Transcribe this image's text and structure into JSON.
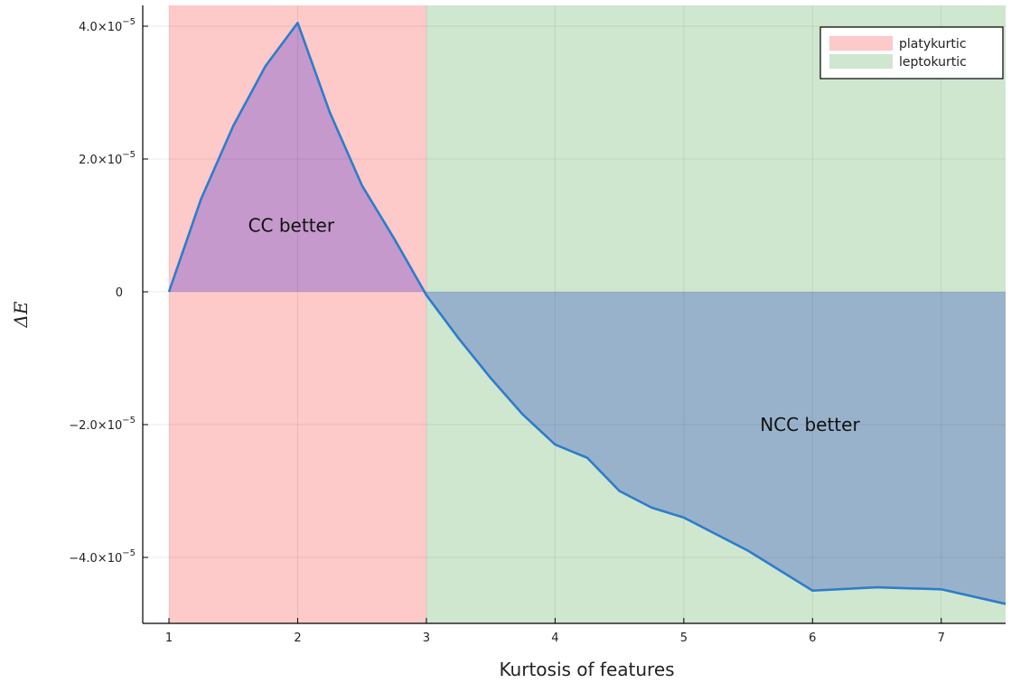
{
  "chart_data": {
    "type": "area",
    "title": "",
    "xlabel": "Kurtosis of features",
    "ylabel": "ΔE",
    "xlim": [
      1,
      7.5
    ],
    "ylim": [
      -5e-05,
      4.3e-05
    ],
    "grid": true,
    "legend_placement": "top-right",
    "x_ticks": [
      {
        "value": 1,
        "label": "1"
      },
      {
        "value": 2,
        "label": "2"
      },
      {
        "value": 3,
        "label": "3"
      },
      {
        "value": 4,
        "label": "4"
      },
      {
        "value": 5,
        "label": "5"
      },
      {
        "value": 6,
        "label": "6"
      },
      {
        "value": 7,
        "label": "7"
      }
    ],
    "y_ticks": [
      {
        "value": 4e-05,
        "mantissa": "4.0×10",
        "exponent": "−5"
      },
      {
        "value": 2e-05,
        "mantissa": "2.0×10",
        "exponent": "−5"
      },
      {
        "value": 0,
        "mantissa": "0",
        "exponent": ""
      },
      {
        "value": -2e-05,
        "mantissa": "−2.0×10",
        "exponent": "−5"
      },
      {
        "value": -4e-05,
        "mantissa": "−4.0×10",
        "exponent": "−5"
      }
    ],
    "regions": [
      {
        "name": "platykurtic",
        "x_start": 1,
        "x_end": 3,
        "color": "#fdc9c9"
      },
      {
        "name": "leptokurtic",
        "x_start": 3,
        "x_end": 7.5,
        "color": "#cfe6cf"
      }
    ],
    "series": [
      {
        "x": [
          1,
          1.25,
          1.5,
          1.75,
          2,
          2.25,
          2.5,
          2.75,
          3,
          3.25,
          3.5,
          3.75,
          4,
          4.25,
          4.5,
          4.75,
          5,
          5.5,
          6,
          6.5,
          7,
          7.5
        ],
        "y": [
          0,
          1.4e-05,
          2.5e-05,
          3.4e-05,
          4.05e-05,
          2.7e-05,
          1.6e-05,
          8e-06,
          -5e-07,
          -7e-06,
          -1.3e-05,
          -1.85e-05,
          -2.3e-05,
          -2.5e-05,
          -3e-05,
          -3.25e-05,
          -3.4e-05,
          -3.9e-05,
          -4.5e-05,
          -4.45e-05,
          -4.48e-05,
          -4.7e-05
        ],
        "color": "#2d7dc9"
      }
    ],
    "fill_colors": {
      "positive": "#c599cc",
      "negative": "#99b2cb"
    },
    "annotations": [
      {
        "text": "CC better",
        "x": 1.95,
        "y": 1e-05
      },
      {
        "text": "NCC better",
        "x": 5.98,
        "y": -2e-05
      }
    ]
  }
}
